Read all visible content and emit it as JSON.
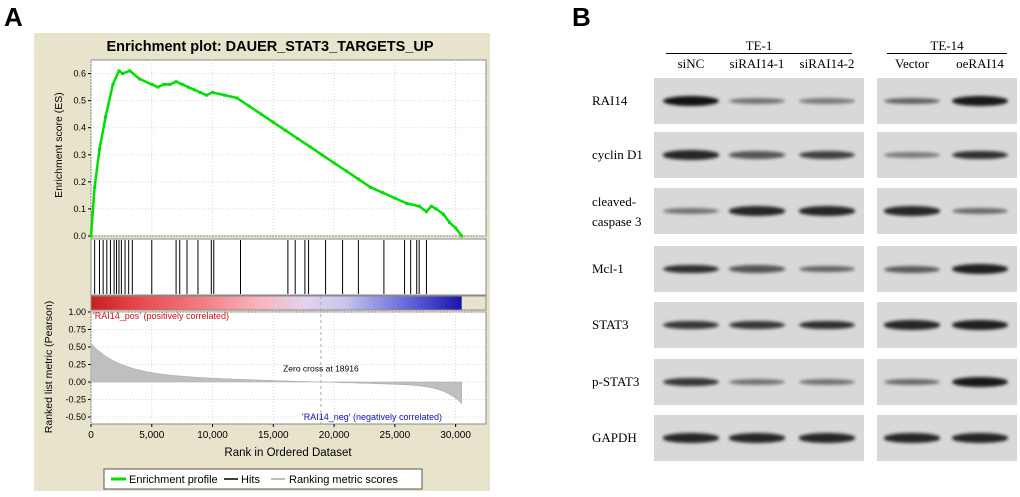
{
  "panel_a": {
    "letter": "A",
    "chart_data": {
      "type": "line",
      "title": "Enrichment plot: DAUER_STAT3_TARGETS_UP",
      "top_ylabel": "Enrichment score (ES)",
      "top_yticks": [
        "0.6",
        "0.5",
        "0.4",
        "0.3",
        "0.2",
        "0.1",
        "0.0"
      ],
      "top_ylim": [
        0,
        0.65
      ],
      "es_curve": {
        "x": [
          0,
          300,
          700,
          1200,
          1800,
          2300,
          2600,
          3200,
          4000,
          5000,
          5500,
          6000,
          6500,
          7000,
          7500,
          8000,
          8500,
          9000,
          9500,
          10000,
          11000,
          12000,
          13000,
          14000,
          15000,
          16000,
          17000,
          18000,
          19000,
          20000,
          21000,
          22000,
          23000,
          24000,
          25000,
          26000,
          27000,
          27600,
          28000,
          28400,
          29000,
          29500,
          30000,
          30500
        ],
        "y": [
          0.0,
          0.18,
          0.32,
          0.44,
          0.56,
          0.61,
          0.6,
          0.61,
          0.58,
          0.56,
          0.55,
          0.56,
          0.56,
          0.57,
          0.56,
          0.55,
          0.54,
          0.53,
          0.52,
          0.53,
          0.52,
          0.51,
          0.48,
          0.45,
          0.42,
          0.39,
          0.36,
          0.33,
          0.3,
          0.27,
          0.24,
          0.21,
          0.18,
          0.16,
          0.14,
          0.12,
          0.11,
          0.09,
          0.11,
          0.1,
          0.08,
          0.05,
          0.03,
          0.0
        ]
      },
      "hits_x": [
        300,
        700,
        1000,
        1300,
        1600,
        1900,
        2100,
        2300,
        2500,
        2800,
        3100,
        3400,
        5000,
        7000,
        7300,
        7900,
        8800,
        9900,
        10100,
        12300,
        16200,
        16800,
        17600,
        17900,
        19300,
        20700,
        22000,
        24100,
        25800,
        26300,
        26800,
        27000,
        27600
      ],
      "bottom_ylabel": "Ranked list metric (Pearson)",
      "bottom_yticks": [
        "1.00",
        "0.75",
        "0.50",
        "0.25",
        "0.00",
        "-0.25",
        "-0.50"
      ],
      "bottom_ylim": [
        -0.6,
        1.0
      ],
      "xticks": [
        "0",
        "5,000",
        "10,000",
        "15,000",
        "20,000",
        "25,000",
        "30,000"
      ],
      "xlim": [
        0,
        32500
      ],
      "xlabel": "Rank in Ordered Dataset",
      "pos_label": "'RAI14_pos' (positively correlated)",
      "neg_label": "'RAI14_neg' (negatively correlated)",
      "zero_cross_label": "Zero cross at 18916",
      "zero_cross": 18916,
      "legend": [
        "Enrichment profile",
        "Hits",
        "Ranking metric scores"
      ],
      "colors": {
        "profile": "#00e000",
        "hits": "#000000",
        "metric": "#bfbfbf",
        "pos_text": "#d01010",
        "neg_text": "#1010c0",
        "background": "#e8e4cc"
      }
    }
  },
  "panel_b": {
    "letter": "B",
    "groups": [
      {
        "name": "TE-1",
        "lanes": [
          "siNC",
          "siRAI14-1",
          "siRAI14-2"
        ]
      },
      {
        "name": "TE-14",
        "lanes": [
          "Vector",
          "oeRAI14"
        ]
      }
    ],
    "rows": [
      {
        "label": "RAI14",
        "te1": [
          1.0,
          0.35,
          0.3
        ],
        "te14": [
          0.45,
          0.95
        ]
      },
      {
        "label": "cyclin D1",
        "te1": [
          0.85,
          0.55,
          0.7
        ],
        "te14": [
          0.3,
          0.8
        ]
      },
      {
        "label": "cleaved-\ncaspase 3",
        "label_lines": [
          "cleaved-",
          "caspase 3"
        ],
        "te1": [
          0.35,
          0.85,
          0.85
        ],
        "te14": [
          0.85,
          0.4
        ]
      },
      {
        "label": "Mcl-1",
        "te1": [
          0.8,
          0.55,
          0.45
        ],
        "te14": [
          0.5,
          0.9
        ]
      },
      {
        "label": "STAT3",
        "te1": [
          0.75,
          0.75,
          0.8
        ],
        "te14": [
          0.85,
          0.9
        ]
      },
      {
        "label": "p-STAT3",
        "te1": [
          0.75,
          0.35,
          0.35
        ],
        "te14": [
          0.4,
          0.95
        ]
      },
      {
        "label": "GAPDH",
        "te1": [
          0.85,
          0.85,
          0.85
        ],
        "te14": [
          0.85,
          0.85
        ]
      }
    ]
  }
}
